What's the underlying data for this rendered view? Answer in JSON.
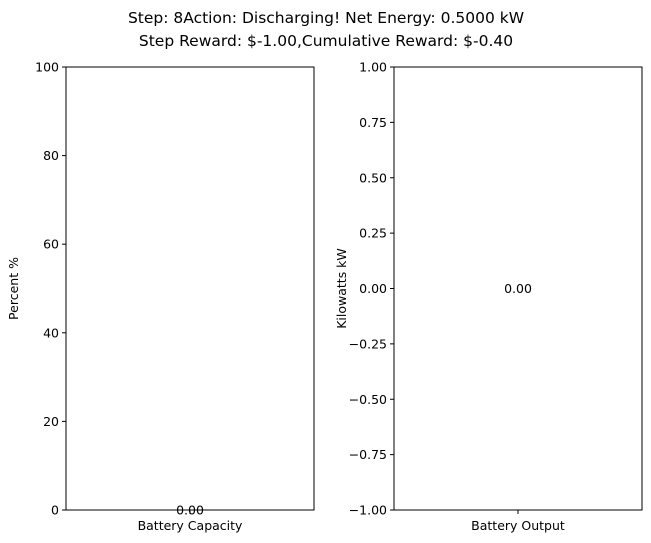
{
  "figure": {
    "title_lines": [
      "Step: 8Action: Discharging! Net Energy: 0.5000 kW",
      "Step Reward: $-1.00,Cumulative Reward: $-0.40"
    ]
  },
  "chart_data": [
    {
      "type": "bar",
      "categories": [
        "Battery Capacity"
      ],
      "values": [
        0.0
      ],
      "data_labels": [
        "0.00"
      ],
      "xlabel": "",
      "ylabel": "Percent %",
      "ylim": [
        0,
        100
      ],
      "yticks": [
        0,
        20,
        40,
        60,
        80,
        100
      ],
      "ytick_labels": [
        "0",
        "20",
        "40",
        "60",
        "80",
        "100"
      ],
      "grid": false
    },
    {
      "type": "bar",
      "categories": [
        "Battery Output"
      ],
      "values": [
        0.0
      ],
      "data_labels": [
        "0.00"
      ],
      "xlabel": "",
      "ylabel": "Kilowatts kW",
      "ylim": [
        -1.0,
        1.0
      ],
      "yticks": [
        -1.0,
        -0.75,
        -0.5,
        -0.25,
        0.0,
        0.25,
        0.5,
        0.75,
        1.0
      ],
      "ytick_labels": [
        "−1.00",
        "−0.75",
        "−0.50",
        "−0.25",
        "0.00",
        "0.25",
        "0.50",
        "0.75",
        "1.00"
      ],
      "grid": false
    }
  ]
}
